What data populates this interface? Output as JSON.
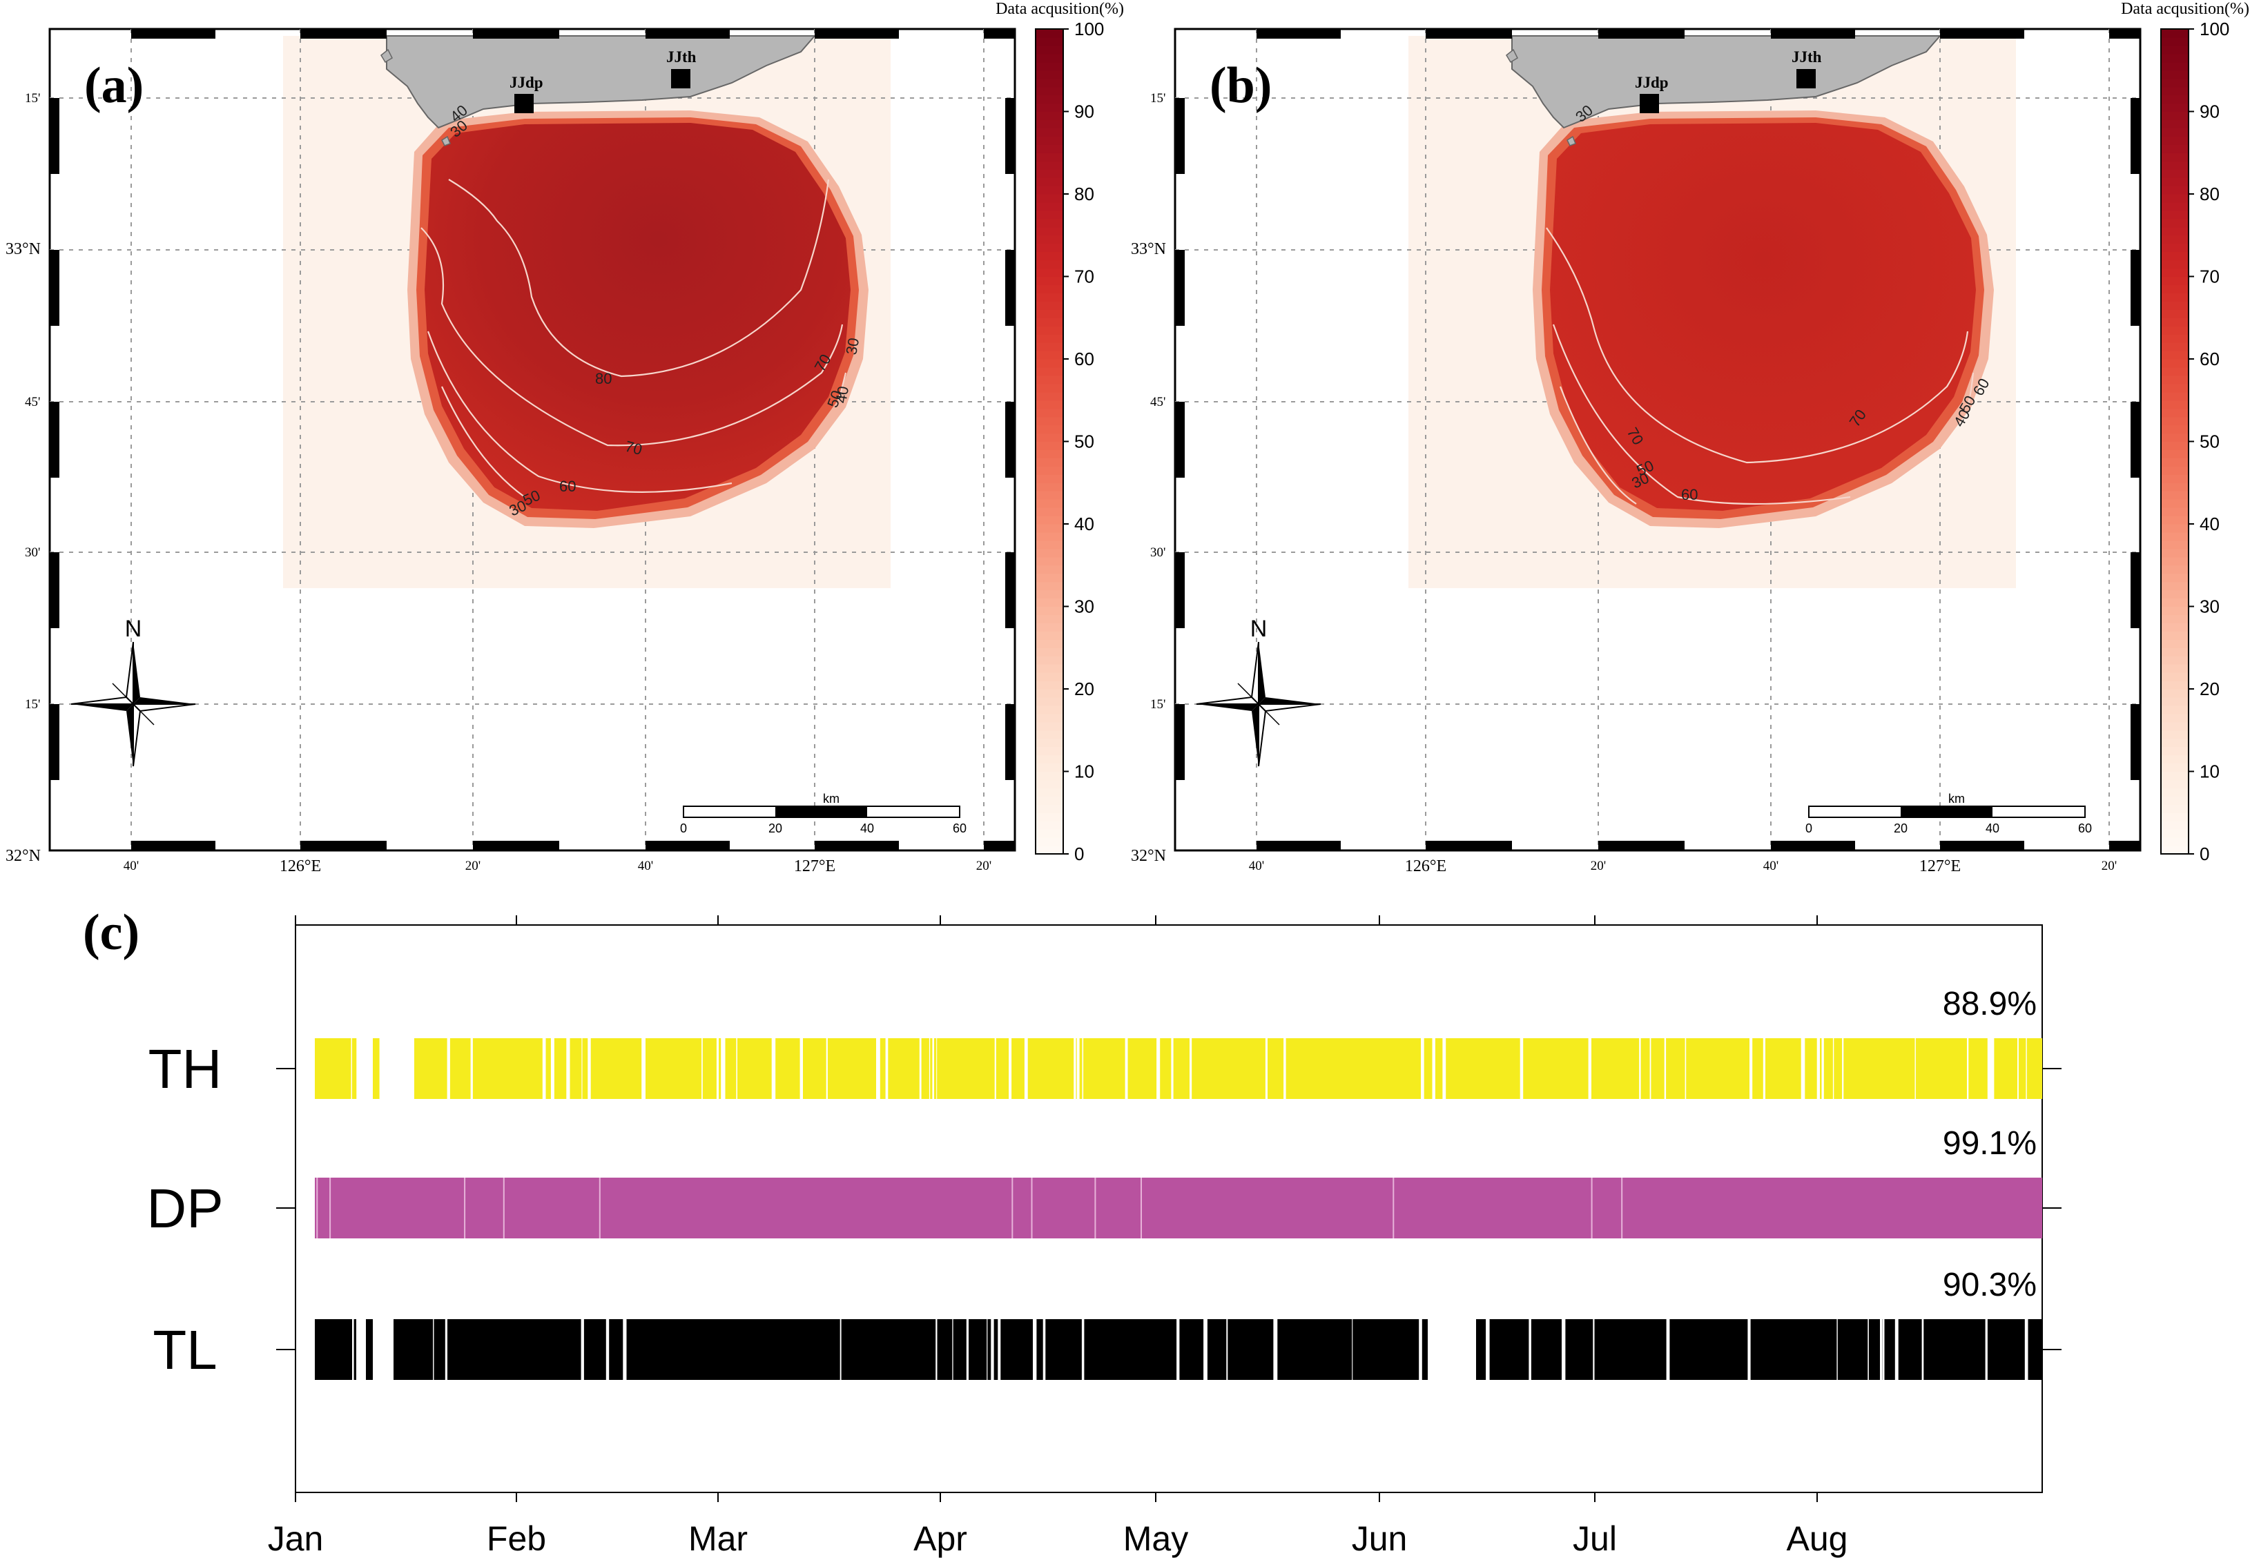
{
  "figure": {
    "panel_a_label": "(a)",
    "panel_b_label": "(b)",
    "panel_c_label": "(c)"
  },
  "chart_data": [
    {
      "type": "heatmap",
      "panel": "(a)",
      "colorbar_title": "Data acqusition(%)",
      "colorbar_ticks": [
        0,
        10,
        20,
        30,
        40,
        50,
        60,
        70,
        80,
        90,
        100
      ],
      "colorbar_range": [
        0,
        100
      ],
      "lat_ticks": [
        "32°N",
        "15'",
        "30'",
        "45'",
        "33°N",
        "15'"
      ],
      "lon_ticks": [
        "40'",
        "126°E",
        "20'",
        "40'",
        "127°E",
        "20'"
      ],
      "stations": [
        "JJdp",
        "JJth"
      ],
      "contour_labels": [
        "80",
        "70",
        "60",
        "50",
        "30",
        "30",
        "40",
        "50",
        "40",
        "70",
        "30"
      ],
      "scalebar": {
        "unit": "km",
        "ticks": [
          "0",
          "20",
          "40",
          "60"
        ]
      },
      "north_label": "N",
      "core_level": 85
    },
    {
      "type": "heatmap",
      "panel": "(b)",
      "colorbar_title": "Data acqusition(%)",
      "colorbar_ticks": [
        0,
        10,
        20,
        30,
        40,
        50,
        60,
        70,
        80,
        90,
        100
      ],
      "colorbar_range": [
        0,
        100
      ],
      "lat_ticks": [
        "32°N",
        "15'",
        "30'",
        "45'",
        "33°N",
        "15'"
      ],
      "lon_ticks": [
        "40'",
        "126°E",
        "20'",
        "40'",
        "127°E",
        "20'"
      ],
      "stations": [
        "JJdp",
        "JJth"
      ],
      "contour_labels": [
        "70",
        "70",
        "60",
        "30",
        "50",
        "40",
        "60",
        "50",
        "30"
      ],
      "scalebar": {
        "unit": "km",
        "ticks": [
          "0",
          "20",
          "40",
          "60"
        ]
      },
      "north_label": "N",
      "core_level": 82
    },
    {
      "type": "bar",
      "panel": "(c)",
      "subtype": "availability-timeline",
      "x_ticks": [
        "Jan",
        "Feb",
        "Mar",
        "Apr",
        "May",
        "Jun",
        "Jul",
        "Aug"
      ],
      "series": [
        {
          "name": "TH",
          "percent_label": "88.9%",
          "color": "#f5ec1e",
          "availability": 0.889
        },
        {
          "name": "DP",
          "percent_label": "99.1%",
          "color": "#b8529f",
          "availability": 0.991
        },
        {
          "name": "TL",
          "percent_label": "90.3%",
          "color": "#000000",
          "availability": 0.903
        }
      ]
    }
  ]
}
